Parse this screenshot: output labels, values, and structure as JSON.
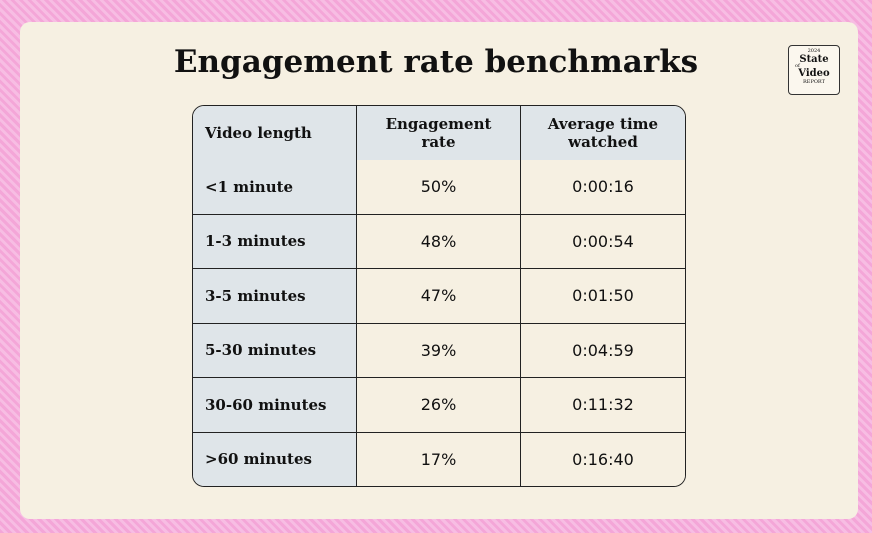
{
  "header": {
    "title": "Engagement rate benchmarks"
  },
  "logo": {
    "year": "2024",
    "line1": "State",
    "small": "of",
    "line2": "Video",
    "footer": "REPORT"
  },
  "table": {
    "columns": [
      "Video length",
      "Engagement rate",
      "Average time watched"
    ],
    "rows": [
      [
        "<1 minute",
        "50%",
        "0:00:16"
      ],
      [
        "1-3 minutes",
        "48%",
        "0:00:54"
      ],
      [
        "3-5 minutes",
        "47%",
        "0:01:50"
      ],
      [
        "5-30 minutes",
        "39%",
        "0:04:59"
      ],
      [
        "30-60 minutes",
        "26%",
        "0:11:32"
      ],
      [
        ">60 minutes",
        "17%",
        "0:16:40"
      ]
    ]
  }
}
